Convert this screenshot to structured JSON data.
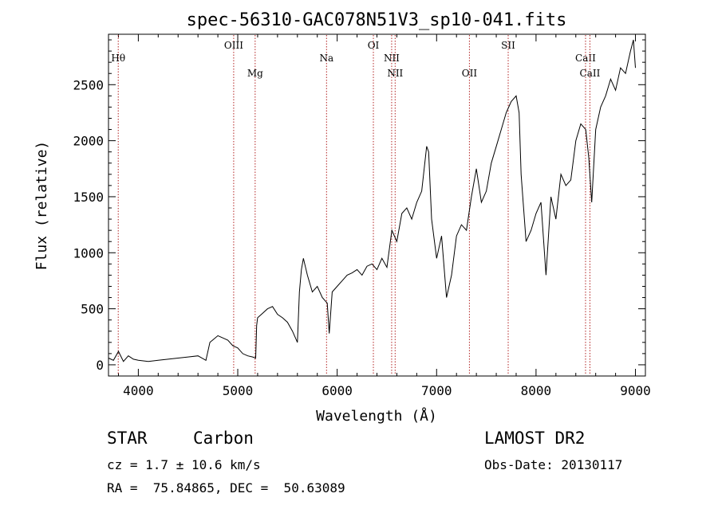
{
  "chart_data": {
    "type": "line",
    "title": "spec-56310-GAC078N51V3_sp10-041.fits",
    "xlabel": "Wavelength (Å)",
    "ylabel": "Flux (relative)",
    "xlim": [
      3700,
      9100
    ],
    "ylim": [
      -100,
      2950
    ],
    "xticks": [
      4000,
      5000,
      6000,
      7000,
      8000,
      9000
    ],
    "yticks": [
      0,
      500,
      1000,
      1500,
      2000,
      2500
    ],
    "grid": false,
    "series_color": "#000000",
    "line_color": "#b22222",
    "series": [
      {
        "x": [
          3700,
          3750,
          3800,
          3850,
          3900,
          3950,
          4000,
          4100,
          4200,
          4300,
          4400,
          4500,
          4600,
          4680,
          4720,
          4760,
          4800,
          4850,
          4900,
          4950,
          5000,
          5050,
          5100,
          5150,
          5180,
          5190,
          5200,
          5250,
          5300,
          5350,
          5400,
          5450,
          5500,
          5550,
          5600,
          5620,
          5640,
          5660,
          5700,
          5750,
          5800,
          5850,
          5900,
          5920,
          5950,
          6000,
          6050,
          6100,
          6150,
          6200,
          6250,
          6300,
          6350,
          6400,
          6450,
          6500,
          6550,
          6600,
          6650,
          6700,
          6750,
          6800,
          6850,
          6900,
          6920,
          6950,
          7000,
          7050,
          7100,
          7150,
          7200,
          7250,
          7300,
          7350,
          7400,
          7450,
          7500,
          7550,
          7600,
          7650,
          7700,
          7750,
          7800,
          7830,
          7850,
          7900,
          7950,
          8000,
          8050,
          8100,
          8150,
          8200,
          8250,
          8300,
          8350,
          8400,
          8450,
          8500,
          8530,
          8560,
          8600,
          8650,
          8700,
          8750,
          8800,
          8850,
          8900,
          8950,
          8980,
          9000
        ],
        "y": [
          60,
          40,
          120,
          30,
          80,
          50,
          40,
          30,
          40,
          50,
          60,
          70,
          80,
          40,
          200,
          230,
          260,
          240,
          220,
          170,
          150,
          100,
          80,
          70,
          60,
          350,
          420,
          460,
          500,
          520,
          450,
          420,
          380,
          300,
          200,
          650,
          850,
          950,
          800,
          650,
          700,
          600,
          550,
          280,
          650,
          700,
          750,
          800,
          820,
          850,
          800,
          880,
          900,
          850,
          950,
          870,
          1200,
          1100,
          1350,
          1400,
          1300,
          1450,
          1550,
          1950,
          1900,
          1300,
          950,
          1150,
          600,
          800,
          1150,
          1250,
          1200,
          1500,
          1750,
          1450,
          1550,
          1800,
          1950,
          2100,
          2250,
          2350,
          2400,
          2250,
          1700,
          1100,
          1200,
          1350,
          1450,
          800,
          1500,
          1300,
          1700,
          1600,
          1650,
          2000,
          2150,
          2100,
          1850,
          1450,
          2100,
          2300,
          2400,
          2550,
          2450,
          2650,
          2600,
          2800,
          2900,
          2650
        ]
      }
    ],
    "lines": [
      {
        "label": "Hθ",
        "x": 3798,
        "row": 1
      },
      {
        "label": "OIII",
        "x": 4959,
        "row": 0
      },
      {
        "label": "Mg",
        "x": 5175,
        "row": 2
      },
      {
        "label": "Na",
        "x": 5893,
        "row": 1
      },
      {
        "label": "OI",
        "x": 6364,
        "row": 0
      },
      {
        "label": "NII",
        "x": 6548,
        "row": 1
      },
      {
        "label": "NII",
        "x": 6583,
        "row": 2
      },
      {
        "label": "OII",
        "x": 7330,
        "row": 2
      },
      {
        "label": "SII",
        "x": 7720,
        "row": 0
      },
      {
        "label": "CaII",
        "x": 8498,
        "row": 1
      },
      {
        "label": "CaII",
        "x": 8542,
        "row": 2
      }
    ]
  },
  "info": {
    "object_class": "STAR",
    "subclass": "Carbon",
    "survey": "LAMOST DR2",
    "redshift_line": "cz = 1.7 ± 10.6 km/s",
    "obs_date_line": "Obs-Date: 20130117",
    "coords_line": "RA =  75.84865, DEC =  50.63089"
  }
}
